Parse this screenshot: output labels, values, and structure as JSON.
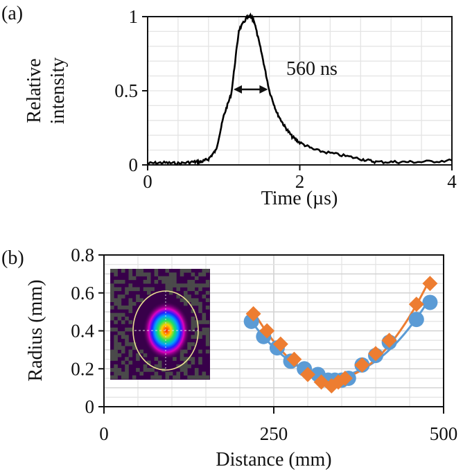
{
  "chart_data": [
    {
      "panel_label": "(a)",
      "type": "line",
      "xlabel": "Time (µs)",
      "ylabel": [
        "Relative",
        "intensity"
      ],
      "xlim": [
        0,
        4
      ],
      "ylim": [
        0,
        1
      ],
      "xticks": [
        "0",
        "2",
        "4"
      ],
      "yticks": [
        "0",
        "0.5",
        "1"
      ],
      "annotation": "560 ns",
      "grid": true,
      "series": [
        {
          "name": "pulse",
          "color": "#000000",
          "x": [
            0,
            0.2,
            0.4,
            0.6,
            0.7,
            0.8,
            0.9,
            1.0,
            1.1,
            1.2,
            1.3,
            1.35,
            1.4,
            1.5,
            1.6,
            1.7,
            1.8,
            1.9,
            2.0,
            2.2,
            2.5,
            2.8,
            3.0,
            3.3,
            3.6,
            4.0
          ],
          "y": [
            0.01,
            0.015,
            0.01,
            0.02,
            0.02,
            0.04,
            0.1,
            0.33,
            0.48,
            0.91,
            0.99,
            1.0,
            0.97,
            0.75,
            0.5,
            0.35,
            0.26,
            0.19,
            0.15,
            0.1,
            0.07,
            0.04,
            0.02,
            0.02,
            0.02,
            0.03
          ]
        }
      ]
    },
    {
      "panel_label": "(b)",
      "type": "scatter",
      "xlabel": "Distance (mm)",
      "ylabel": "Radius (mm)",
      "xlim": [
        0,
        500
      ],
      "ylim": [
        0,
        0.8
      ],
      "xticks": [
        "0",
        "250",
        "500"
      ],
      "yticks": [
        "0",
        "0.2",
        "0.4",
        "0.6",
        "0.8"
      ],
      "grid": true,
      "series": [
        {
          "name": "circles",
          "color": "#5b9bd5",
          "marker": "circle",
          "fit": "quadratic",
          "x": [
            217,
            235,
            255,
            275,
            295,
            315,
            330,
            340,
            350,
            360,
            380,
            400,
            420,
            460,
            480
          ],
          "y": [
            0.45,
            0.37,
            0.31,
            0.24,
            0.2,
            0.17,
            0.14,
            0.14,
            0.14,
            0.15,
            0.22,
            0.27,
            0.34,
            0.46,
            0.55
          ]
        },
        {
          "name": "diamonds",
          "color": "#ed7d31",
          "marker": "diamond",
          "fit": "quadratic",
          "x": [
            220,
            240,
            260,
            280,
            300,
            320,
            335,
            345,
            355,
            380,
            400,
            420,
            460,
            480
          ],
          "y": [
            0.49,
            0.4,
            0.33,
            0.25,
            0.17,
            0.13,
            0.11,
            0.13,
            0.15,
            0.22,
            0.28,
            0.35,
            0.54,
            0.65
          ]
        }
      ]
    }
  ]
}
